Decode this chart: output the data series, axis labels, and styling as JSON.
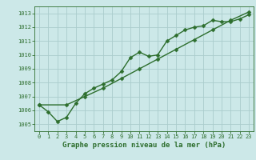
{
  "title": "Graphe pression niveau de la mer (hPa)",
  "bg_color": "#cce8e8",
  "grid_color": "#aacccc",
  "line_color": "#2d6e2d",
  "xlim": [
    -0.5,
    23.5
  ],
  "ylim": [
    1004.5,
    1013.5
  ],
  "yticks": [
    1005,
    1006,
    1007,
    1008,
    1009,
    1010,
    1011,
    1012,
    1013
  ],
  "xticks": [
    0,
    1,
    2,
    3,
    4,
    5,
    6,
    7,
    8,
    9,
    10,
    11,
    12,
    13,
    14,
    15,
    16,
    17,
    18,
    19,
    20,
    21,
    22,
    23
  ],
  "series1_x": [
    0,
    1,
    2,
    3,
    4,
    5,
    6,
    7,
    8,
    9,
    10,
    11,
    12,
    13,
    14,
    15,
    16,
    17,
    18,
    19,
    20,
    21,
    22,
    23
  ],
  "series1_y": [
    1006.4,
    1005.9,
    1005.2,
    1005.5,
    1006.5,
    1007.2,
    1007.6,
    1007.9,
    1008.2,
    1008.8,
    1009.8,
    1010.2,
    1009.9,
    1010.0,
    1011.0,
    1011.4,
    1011.8,
    1012.0,
    1012.1,
    1012.5,
    1012.4,
    1012.4,
    1012.6,
    1012.9
  ],
  "series2_x": [
    0,
    3,
    5,
    7,
    9,
    11,
    13,
    15,
    17,
    19,
    21,
    23
  ],
  "series2_y": [
    1006.4,
    1006.4,
    1007.0,
    1007.6,
    1008.3,
    1009.0,
    1009.7,
    1010.4,
    1011.1,
    1011.8,
    1012.5,
    1013.1
  ],
  "title_fontsize": 6.5,
  "tick_fontsize": 5.0,
  "linewidth": 1.0,
  "markersize": 2.5
}
